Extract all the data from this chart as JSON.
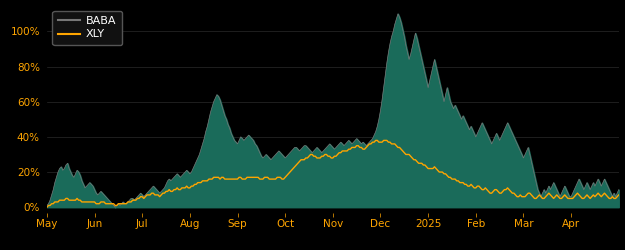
{
  "background_color": "#000000",
  "plot_bg_color": "#000000",
  "baba_color": "#1a6b5a",
  "xly_color": "#FFA500",
  "baba_legend_color": "#777777",
  "ylim": [
    -3,
    115
  ],
  "yticks": [
    0,
    20,
    40,
    60,
    80,
    100
  ],
  "ytick_labels": [
    "0%",
    "20%",
    "40%",
    "60%",
    "80%",
    "100%"
  ],
  "xtick_labels": [
    "May",
    "Jun",
    "Jul",
    "Aug",
    "Sep",
    "Oct",
    "Nov",
    "Dec",
    "2025",
    "Feb",
    "Mar",
    "Apr"
  ],
  "legend_facecolor": "#111111",
  "legend_edgecolor": "#555555",
  "tick_color": "#FFA500",
  "grid_color": "#2a2a2a",
  "baba_data": [
    1,
    2,
    4,
    7,
    10,
    14,
    17,
    20,
    22,
    23,
    21,
    22,
    24,
    25,
    22,
    20,
    18,
    17,
    19,
    21,
    20,
    18,
    15,
    13,
    11,
    12,
    13,
    14,
    13,
    12,
    10,
    8,
    7,
    8,
    9,
    8,
    7,
    6,
    5,
    4,
    3,
    2,
    1,
    0,
    1,
    2,
    1,
    2,
    3,
    2,
    2,
    3,
    4,
    5,
    5,
    4,
    5,
    6,
    7,
    8,
    7,
    6,
    7,
    8,
    9,
    10,
    11,
    12,
    11,
    10,
    9,
    8,
    9,
    10,
    11,
    13,
    15,
    16,
    15,
    16,
    17,
    18,
    19,
    18,
    17,
    18,
    19,
    20,
    21,
    20,
    19,
    20,
    22,
    24,
    26,
    28,
    30,
    33,
    36,
    39,
    43,
    46,
    50,
    54,
    57,
    60,
    62,
    64,
    63,
    61,
    58,
    55,
    52,
    50,
    47,
    45,
    42,
    40,
    38,
    37,
    36,
    38,
    40,
    39,
    38,
    39,
    40,
    41,
    40,
    39,
    38,
    36,
    35,
    33,
    31,
    29,
    28,
    29,
    30,
    29,
    28,
    27,
    28,
    29,
    30,
    31,
    32,
    31,
    30,
    29,
    28,
    29,
    30,
    31,
    32,
    33,
    34,
    34,
    33,
    32,
    33,
    34,
    35,
    35,
    34,
    33,
    32,
    31,
    32,
    33,
    34,
    33,
    32,
    31,
    32,
    33,
    34,
    35,
    36,
    35,
    34,
    33,
    34,
    35,
    36,
    37,
    36,
    35,
    36,
    37,
    38,
    37,
    36,
    37,
    38,
    39,
    38,
    37,
    36,
    37,
    36,
    35,
    36,
    37,
    38,
    39,
    41,
    43,
    46,
    50,
    55,
    61,
    68,
    75,
    82,
    88,
    93,
    97,
    100,
    104,
    107,
    110,
    108,
    105,
    101,
    97,
    92,
    88,
    84,
    87,
    91,
    95,
    99,
    96,
    92,
    88,
    84,
    80,
    76,
    72,
    68,
    72,
    76,
    80,
    84,
    80,
    76,
    72,
    68,
    64,
    60,
    64,
    68,
    64,
    60,
    58,
    56,
    58,
    56,
    54,
    52,
    50,
    52,
    50,
    48,
    46,
    44,
    46,
    44,
    42,
    40,
    42,
    44,
    46,
    48,
    46,
    44,
    42,
    40,
    38,
    36,
    38,
    40,
    42,
    40,
    38,
    40,
    42,
    44,
    46,
    48,
    46,
    44,
    42,
    40,
    38,
    36,
    34,
    32,
    30,
    28,
    30,
    32,
    34,
    30,
    26,
    22,
    18,
    14,
    10,
    8,
    6,
    8,
    10,
    8,
    10,
    12,
    10,
    12,
    14,
    12,
    10,
    8,
    6,
    8,
    10,
    12,
    10,
    8,
    6,
    6,
    8,
    10,
    12,
    14,
    16,
    14,
    12,
    10,
    12,
    14,
    12,
    10,
    12,
    14,
    12,
    14,
    16,
    14,
    12,
    14,
    16,
    14,
    12,
    10,
    8,
    6,
    8,
    6,
    8,
    10
  ],
  "xly_data": [
    0,
    1,
    1,
    2,
    2,
    3,
    3,
    3,
    4,
    4,
    4,
    4,
    5,
    5,
    4,
    4,
    4,
    4,
    4,
    5,
    4,
    4,
    3,
    3,
    3,
    3,
    3,
    3,
    3,
    3,
    3,
    2,
    2,
    2,
    3,
    3,
    3,
    2,
    2,
    2,
    2,
    2,
    2,
    1,
    1,
    2,
    2,
    2,
    2,
    2,
    2,
    3,
    3,
    3,
    4,
    4,
    4,
    5,
    5,
    6,
    6,
    5,
    6,
    7,
    7,
    7,
    8,
    8,
    7,
    7,
    7,
    6,
    7,
    8,
    8,
    9,
    9,
    10,
    9,
    9,
    10,
    10,
    11,
    10,
    10,
    11,
    11,
    11,
    12,
    11,
    11,
    12,
    12,
    13,
    13,
    14,
    14,
    14,
    15,
    15,
    15,
    15,
    16,
    16,
    16,
    17,
    17,
    17,
    17,
    16,
    17,
    17,
    16,
    16,
    16,
    16,
    16,
    16,
    16,
    16,
    16,
    17,
    17,
    16,
    16,
    16,
    17,
    17,
    17,
    17,
    17,
    17,
    17,
    17,
    16,
    16,
    16,
    17,
    17,
    17,
    16,
    16,
    16,
    16,
    16,
    17,
    17,
    17,
    16,
    16,
    17,
    18,
    19,
    20,
    21,
    22,
    23,
    24,
    25,
    26,
    27,
    27,
    27,
    28,
    28,
    29,
    30,
    30,
    29,
    29,
    28,
    28,
    28,
    29,
    29,
    30,
    30,
    29,
    29,
    28,
    28,
    29,
    29,
    30,
    31,
    31,
    32,
    32,
    32,
    32,
    33,
    33,
    34,
    34,
    34,
    35,
    35,
    34,
    34,
    33,
    33,
    34,
    35,
    36,
    36,
    37,
    37,
    38,
    38,
    37,
    37,
    37,
    38,
    38,
    38,
    37,
    37,
    36,
    36,
    36,
    35,
    34,
    34,
    33,
    32,
    31,
    30,
    30,
    30,
    29,
    28,
    27,
    27,
    26,
    25,
    25,
    25,
    24,
    24,
    23,
    22,
    22,
    22,
    22,
    23,
    22,
    21,
    20,
    20,
    20,
    19,
    19,
    18,
    17,
    17,
    16,
    16,
    16,
    15,
    15,
    14,
    14,
    14,
    13,
    13,
    12,
    12,
    13,
    12,
    11,
    11,
    12,
    12,
    11,
    10,
    10,
    11,
    10,
    9,
    8,
    8,
    9,
    10,
    10,
    9,
    8,
    8,
    9,
    10,
    10,
    11,
    10,
    9,
    8,
    8,
    7,
    6,
    6,
    7,
    6,
    6,
    6,
    7,
    8,
    8,
    7,
    6,
    5,
    5,
    6,
    7,
    6,
    5,
    5,
    6,
    7,
    8,
    7,
    6,
    5,
    6,
    7,
    6,
    5,
    5,
    6,
    7,
    6,
    5,
    5,
    5,
    5,
    6,
    7,
    8,
    7,
    6,
    5,
    5,
    6,
    7,
    6,
    5,
    6,
    7,
    6,
    7,
    8,
    7,
    6,
    7,
    8,
    7,
    6,
    5,
    5,
    6,
    5,
    5,
    6,
    7
  ]
}
